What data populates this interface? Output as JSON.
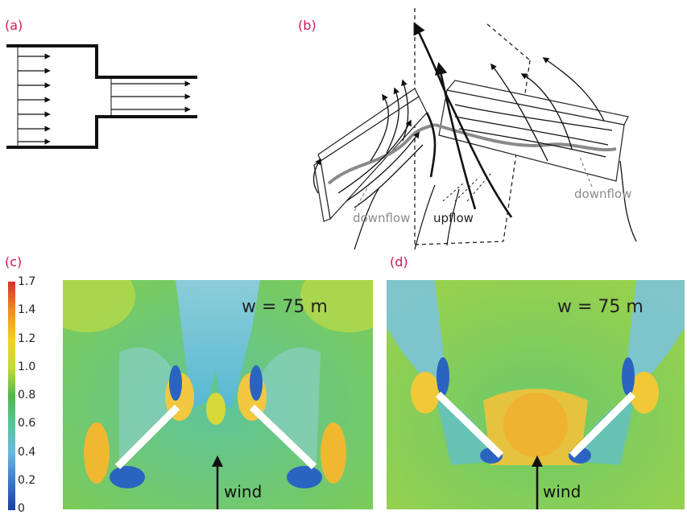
{
  "panels": {
    "a": "(a)",
    "b": "(b)",
    "c": "(c)",
    "d": "(d)"
  },
  "panel_b": {
    "downflow_left": "downflow",
    "upflow": "upflow",
    "downflow_right": "downflow"
  },
  "colorbar": {
    "ticks": [
      "1.7",
      "1.4",
      "1.2",
      "1.0",
      "0.8",
      "0.6",
      "0.4",
      "0.2",
      "0"
    ],
    "colors": [
      "#d73027",
      "#f08a24",
      "#f5d020",
      "#c4dc3a",
      "#52b84a",
      "#58c49a",
      "#6ab8e0",
      "#3a78c8",
      "#1b3fa0"
    ]
  },
  "panel_c": {
    "label": "w = 75 m",
    "wind": "wind"
  },
  "panel_d": {
    "label": "w = 75 m",
    "wind": "wind"
  }
}
